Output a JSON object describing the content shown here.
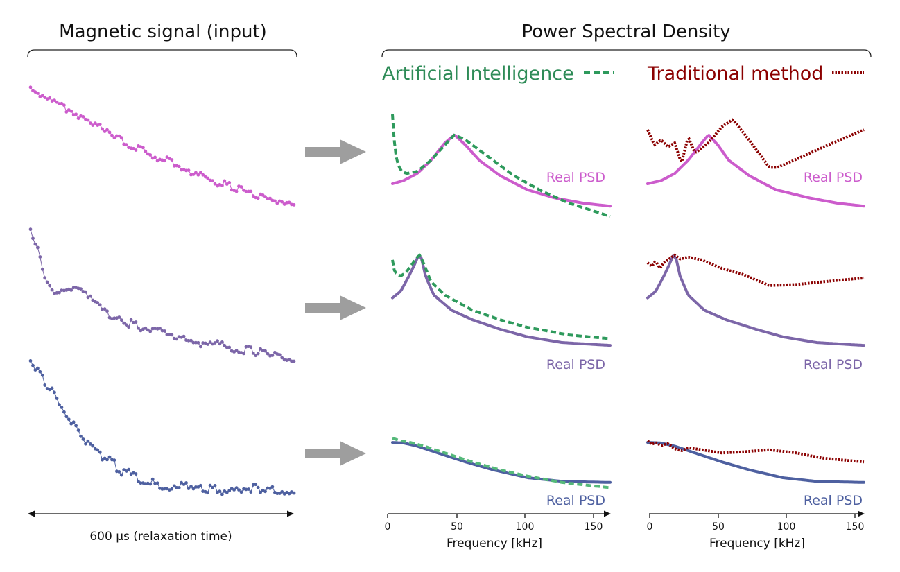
{
  "titles": {
    "left": "Magnetic signal (input)",
    "right": "Power Spectral Density"
  },
  "legend": {
    "ai_label": "Artificial Intelligence",
    "trad_label": "Traditional method"
  },
  "time_axis_label": "600 μs (relaxation time)",
  "colors": {
    "rows": [
      "#cc5ccc",
      "#7c66a8",
      "#4e60a0"
    ],
    "ai": "#2e9a5c",
    "ai_light": "#55b97a",
    "trad": "#8b0000",
    "arrow": "#9e9e9e"
  },
  "chart_data": [
    {
      "type": "line",
      "name": "ai-psd-panel",
      "xlabel": "Frequency [kHz]",
      "ylabel": "",
      "xlim": [
        0,
        160
      ],
      "ylim": [
        0,
        1
      ],
      "xticks": [
        "0",
        "50",
        "100",
        "150"
      ],
      "x_values": [
        0,
        50,
        100,
        150
      ],
      "rows": [
        {
          "label": "Real PSD",
          "real_psd": {
            "x": [
              2,
              10,
              20,
              30,
              40,
              47,
              55,
              65,
              80,
              100,
              120,
              140,
              160
            ],
            "y": [
              0.32,
              0.35,
              0.42,
              0.55,
              0.72,
              0.8,
              0.7,
              0.55,
              0.4,
              0.26,
              0.18,
              0.13,
              0.1
            ]
          },
          "ai_psd": {
            "x": [
              2,
              3,
              5,
              8,
              12,
              20,
              30,
              40,
              47,
              55,
              70,
              90,
              110,
              130,
              160
            ],
            "y": [
              1.0,
              0.78,
              0.55,
              0.45,
              0.42,
              0.44,
              0.55,
              0.7,
              0.8,
              0.75,
              0.6,
              0.4,
              0.25,
              0.13,
              0.0
            ]
          }
        },
        {
          "label": "Real PSD",
          "real_psd": {
            "x": [
              2,
              8,
              14,
              18,
              21,
              23,
              26,
              32,
              45,
              60,
              80,
              100,
              125,
              160
            ],
            "y": [
              0.55,
              0.62,
              0.78,
              0.9,
              1.0,
              0.97,
              0.78,
              0.58,
              0.42,
              0.32,
              0.22,
              0.14,
              0.08,
              0.05
            ]
          },
          "ai_psd": {
            "x": [
              2,
              3,
              5,
              8,
              12,
              16,
              20,
              22,
              25,
              30,
              40,
              60,
              80,
              100,
              130,
              160
            ],
            "y": [
              0.95,
              0.85,
              0.8,
              0.78,
              0.82,
              0.9,
              0.98,
              1.0,
              0.9,
              0.72,
              0.58,
              0.42,
              0.32,
              0.24,
              0.16,
              0.12
            ]
          }
        },
        {
          "label": "Real PSD",
          "real_psd": {
            "x": [
              2,
              10,
              20,
              35,
              55,
              75,
              100,
              125,
              160
            ],
            "y": [
              0.92,
              0.91,
              0.85,
              0.72,
              0.55,
              0.4,
              0.25,
              0.18,
              0.16
            ]
          },
          "ai_psd": {
            "x": [
              2,
              8,
              15,
              25,
              40,
              60,
              80,
              100,
              125,
              160
            ],
            "y": [
              1.0,
              0.95,
              0.92,
              0.85,
              0.72,
              0.55,
              0.4,
              0.28,
              0.16,
              0.06
            ]
          }
        }
      ]
    },
    {
      "type": "line",
      "name": "traditional-psd-panel",
      "xlabel": "Frequency [kHz]",
      "ylabel": "",
      "xlim": [
        0,
        160
      ],
      "ylim": [
        0,
        1
      ],
      "xticks": [
        "0",
        "50",
        "100",
        "150"
      ],
      "x_values": [
        0,
        50,
        100,
        150
      ],
      "rows": [
        {
          "label": "Real PSD",
          "real_psd": {
            "x": [
              0,
              10,
              20,
              30,
              40,
              45,
              52,
              60,
              75,
              95,
              120,
              140,
              160
            ],
            "y": [
              0.32,
              0.35,
              0.42,
              0.55,
              0.72,
              0.8,
              0.7,
              0.55,
              0.4,
              0.26,
              0.18,
              0.13,
              0.1
            ]
          },
          "trad_psd": {
            "x": [
              0,
              5,
              10,
              15,
              20,
              25,
              30,
              35,
              45,
              55,
              63,
              75,
              90,
              96,
              110,
              130,
              160
            ],
            "y": [
              0.85,
              0.7,
              0.75,
              0.68,
              0.72,
              0.52,
              0.78,
              0.62,
              0.72,
              0.88,
              0.95,
              0.75,
              0.48,
              0.48,
              0.56,
              0.68,
              0.85
            ]
          }
        },
        {
          "label": "Real PSD",
          "real_psd": {
            "x": [
              0,
              6,
              12,
              16,
              19,
              21,
              24,
              30,
              42,
              58,
              80,
              100,
              125,
              160
            ],
            "y": [
              0.55,
              0.62,
              0.78,
              0.9,
              1.0,
              0.97,
              0.78,
              0.58,
              0.42,
              0.32,
              0.22,
              0.14,
              0.08,
              0.05
            ]
          },
          "trad_psd": {
            "x": [
              0,
              3,
              6,
              9,
              12,
              15,
              18,
              20,
              24,
              30,
              40,
              55,
              70,
              90,
              110,
              130,
              160
            ],
            "y": [
              0.92,
              0.88,
              0.94,
              0.86,
              0.92,
              0.95,
              0.98,
              1.0,
              0.96,
              0.98,
              0.95,
              0.86,
              0.8,
              0.68,
              0.69,
              0.72,
              0.76
            ]
          }
        },
        {
          "label": "Real PSD",
          "real_psd": {
            "x": [
              0,
              10,
              20,
              35,
              55,
              75,
              100,
              125,
              160
            ],
            "y": [
              0.92,
              0.91,
              0.85,
              0.72,
              0.55,
              0.4,
              0.25,
              0.18,
              0.16
            ]
          },
          "trad_psd": {
            "x": [
              0,
              3,
              6,
              10,
              15,
              20,
              25,
              30,
              40,
              55,
              70,
              90,
              110,
              130,
              160
            ],
            "y": [
              0.95,
              0.88,
              0.92,
              0.86,
              0.9,
              0.8,
              0.76,
              0.82,
              0.78,
              0.72,
              0.74,
              0.78,
              0.72,
              0.62,
              0.55
            ]
          }
        }
      ]
    },
    {
      "type": "scatter",
      "name": "magnetic-signal-panel",
      "xlabel": "600 μs (relaxation time)",
      "xlim": [
        0,
        600
      ],
      "ylim": [
        0,
        1
      ],
      "rows": [
        {
          "x": [
            0,
            30,
            60,
            100,
            150,
            200,
            250,
            300,
            350,
            400,
            450,
            500,
            550,
            600
          ],
          "y": [
            1.0,
            0.92,
            0.88,
            0.8,
            0.71,
            0.6,
            0.5,
            0.42,
            0.35,
            0.28,
            0.22,
            0.17,
            0.1,
            0.05
          ]
        },
        {
          "x": [
            0,
            10,
            20,
            30,
            45,
            60,
            80,
            100,
            130,
            160,
            200,
            250,
            300,
            350,
            400,
            450,
            500,
            550,
            600
          ],
          "y": [
            1.0,
            0.92,
            0.85,
            0.65,
            0.55,
            0.5,
            0.52,
            0.55,
            0.5,
            0.4,
            0.32,
            0.26,
            0.22,
            0.18,
            0.14,
            0.1,
            0.08,
            0.05,
            0.0
          ]
        },
        {
          "x": [
            0,
            20,
            50,
            80,
            110,
            150,
            200,
            250,
            300,
            350,
            400,
            450,
            500,
            550,
            600
          ],
          "y": [
            1.0,
            0.92,
            0.78,
            0.62,
            0.5,
            0.35,
            0.22,
            0.15,
            0.1,
            0.08,
            0.07,
            0.06,
            0.06,
            0.05,
            0.05
          ]
        }
      ]
    }
  ]
}
